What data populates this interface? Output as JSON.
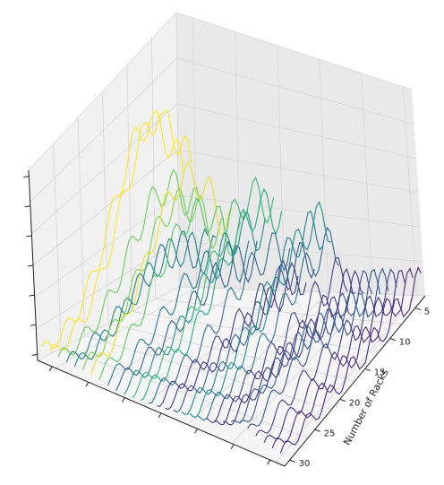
{
  "chart_data": {
    "type": "3d-line-contour",
    "title": "",
    "xlabel": "",
    "ylabel": "Number of Racks",
    "zlabel": "",
    "y_ticks": [
      "5",
      "10",
      "15",
      "20",
      "25",
      "30"
    ],
    "y_range": [
      3,
      31
    ],
    "x_tick_count": 6,
    "z_tick_count": 6,
    "colormap": "viridis",
    "grid": true,
    "legend": "none",
    "surface": {
      "rows": 30,
      "cols": 48,
      "value_range": [
        0,
        1
      ],
      "ridges": [
        {
          "y": 4,
          "x": 0.25,
          "height": 1.0
        },
        {
          "y": 9,
          "x": 0.35,
          "height": 0.7
        },
        {
          "y": 14,
          "x": 0.2,
          "height": 0.55
        },
        {
          "y": 20,
          "x": 0.15,
          "height": 0.4
        },
        {
          "y": 26,
          "x": 0.6,
          "height": 0.15
        }
      ]
    }
  },
  "colors": {
    "pane_left": "#f1f1f1",
    "pane_right": "#e9e9e9",
    "pane_floor": "#f5f5f5",
    "grid": "#d6d6d6",
    "axis": "#222222",
    "viridis": [
      "#440154",
      "#472c7a",
      "#3b518b",
      "#2c718e",
      "#21908d",
      "#27ad81",
      "#5cc863",
      "#aadc32",
      "#fde725"
    ]
  }
}
